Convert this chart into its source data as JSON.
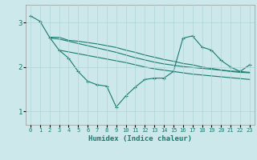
{
  "xlabel": "Humidex (Indice chaleur)",
  "ylabel": "",
  "background_color": "#cce8ea",
  "line_color": "#1a7a6e",
  "grid_color": "#aed4d6",
  "xlim": [
    -0.5,
    23.5
  ],
  "ylim": [
    0.7,
    3.4
  ],
  "yticks": [
    1,
    2,
    3
  ],
  "xticks": [
    0,
    1,
    2,
    3,
    4,
    5,
    6,
    7,
    8,
    9,
    10,
    11,
    12,
    13,
    14,
    15,
    16,
    17,
    18,
    19,
    20,
    21,
    22,
    23
  ],
  "line1_x": [
    0,
    1,
    2,
    3,
    4,
    5,
    6,
    7,
    8,
    9,
    10,
    11,
    12,
    13,
    14,
    15,
    16,
    17,
    18,
    19,
    20,
    21,
    22,
    23
  ],
  "line1_y": [
    3.15,
    3.03,
    2.67,
    2.38,
    2.2,
    1.9,
    1.68,
    1.6,
    1.57,
    1.1,
    1.35,
    1.55,
    1.72,
    1.75,
    1.75,
    1.9,
    2.65,
    2.7,
    2.45,
    2.38,
    2.15,
    2.0,
    1.9,
    2.05
  ],
  "line2_x": [
    2,
    3,
    4,
    5,
    6,
    7,
    8,
    9,
    10,
    11,
    12,
    13,
    14,
    15,
    16,
    17,
    18,
    19,
    20,
    21,
    22,
    23
  ],
  "line2_y": [
    2.67,
    2.67,
    2.6,
    2.58,
    2.55,
    2.52,
    2.48,
    2.44,
    2.38,
    2.33,
    2.27,
    2.22,
    2.17,
    2.13,
    2.08,
    2.05,
    2.0,
    1.97,
    1.93,
    1.9,
    1.88,
    1.87
  ],
  "line3_x": [
    2,
    3,
    4,
    5,
    6,
    7,
    8,
    9,
    10,
    11,
    12,
    13,
    14,
    15,
    16,
    17,
    18,
    19,
    20,
    21,
    22,
    23
  ],
  "line3_y": [
    2.65,
    2.63,
    2.58,
    2.53,
    2.48,
    2.43,
    2.38,
    2.33,
    2.27,
    2.21,
    2.16,
    2.11,
    2.07,
    2.04,
    2.01,
    1.99,
    1.97,
    1.95,
    1.93,
    1.91,
    1.9,
    1.88
  ],
  "line4_x": [
    3,
    4,
    5,
    6,
    7,
    8,
    9,
    10,
    11,
    12,
    13,
    14,
    15,
    16,
    17,
    18,
    19,
    20,
    21,
    22,
    23
  ],
  "line4_y": [
    2.38,
    2.34,
    2.3,
    2.26,
    2.22,
    2.18,
    2.14,
    2.1,
    2.05,
    2.0,
    1.96,
    1.93,
    1.9,
    1.87,
    1.84,
    1.82,
    1.8,
    1.78,
    1.76,
    1.74,
    1.72
  ]
}
